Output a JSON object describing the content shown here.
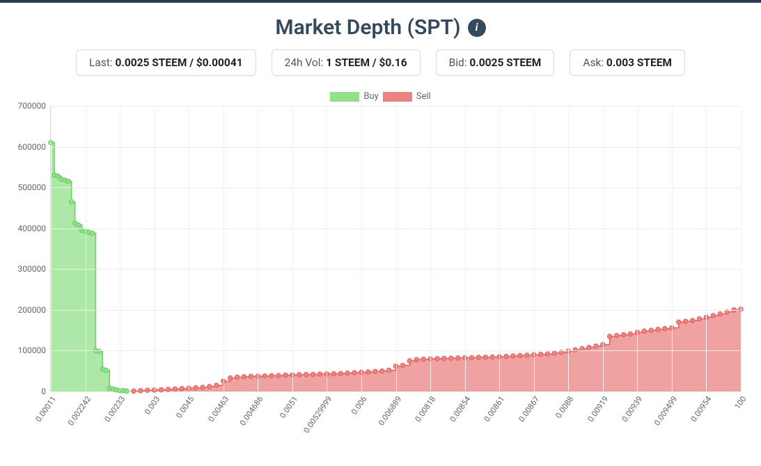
{
  "title": "Market Depth (SPT)",
  "info_icon_glyph": "i",
  "stats": [
    {
      "label": "Last: ",
      "value": "0.0025 STEEM / $0.00041"
    },
    {
      "label": "24h Vol: ",
      "value": "1 STEEM / $0.16"
    },
    {
      "label": "Bid: ",
      "value": "0.0025 STEEM"
    },
    {
      "label": "Ask: ",
      "value": "0.003 STEEM"
    }
  ],
  "legend": {
    "buy_label": "Buy",
    "sell_label": "Sell"
  },
  "chart": {
    "type": "depth-area",
    "ylim": [
      0,
      700000
    ],
    "ytick_step": 100000,
    "yticks": [
      0,
      100000,
      200000,
      300000,
      400000,
      500000,
      600000,
      700000
    ],
    "x_categories": [
      "0.00011",
      "0.002242",
      "0.00233",
      "0.003",
      "0.0045",
      "0.00463",
      "0.004686",
      "0.0051",
      "0.00529999",
      "0.006",
      "0.006889",
      "0.00818",
      "0.00854",
      "0.00861",
      "0.00867",
      "0.0088",
      "0.00919",
      "0.00939",
      "0.009499",
      "0.00954",
      "100"
    ],
    "background_color": "#ffffff",
    "grid_color": "#ececec",
    "axis_color": "#d8d8d8",
    "label_color": "#666666",
    "label_fontsize": 12,
    "buy": {
      "fill": "#92e08a",
      "stroke": "#6ccf62",
      "marker_radius": 3.2,
      "points": [
        [
          0,
          610000
        ],
        [
          0.5,
          530000
        ],
        [
          1,
          528000
        ],
        [
          1.5,
          520000
        ],
        [
          2,
          518000
        ],
        [
          2.5,
          515000
        ],
        [
          3,
          465000
        ],
        [
          3.5,
          412000
        ],
        [
          4,
          408000
        ],
        [
          4.5,
          395000
        ],
        [
          5,
          393000
        ],
        [
          5.5,
          390000
        ],
        [
          6,
          388000
        ],
        [
          6.5,
          100000
        ],
        [
          7,
          98000
        ],
        [
          7.5,
          55000
        ],
        [
          8,
          52000
        ],
        [
          8.5,
          8000
        ],
        [
          9,
          6000
        ],
        [
          9.5,
          4000
        ],
        [
          10,
          2500
        ],
        [
          10.5,
          2000
        ],
        [
          11,
          1000
        ]
      ]
    },
    "sell": {
      "fill": "#eb8382",
      "stroke": "#e06665",
      "marker_radius": 3.2,
      "points": [
        [
          12,
          1000
        ],
        [
          13,
          2000
        ],
        [
          14,
          3000
        ],
        [
          15,
          3500
        ],
        [
          16,
          4000
        ],
        [
          17,
          5000
        ],
        [
          18,
          6000
        ],
        [
          19,
          7000
        ],
        [
          20,
          8000
        ],
        [
          21,
          9000
        ],
        [
          22,
          10000
        ],
        [
          23,
          12000
        ],
        [
          24,
          15000
        ],
        [
          25,
          25000
        ],
        [
          26,
          33000
        ],
        [
          27,
          35000
        ],
        [
          28,
          36000
        ],
        [
          29,
          37000
        ],
        [
          30,
          37500
        ],
        [
          31,
          38000
        ],
        [
          32,
          38500
        ],
        [
          33,
          39000
        ],
        [
          34,
          40000
        ],
        [
          35,
          40500
        ],
        [
          36,
          41000
        ],
        [
          37,
          41500
        ],
        [
          38,
          42000
        ],
        [
          39,
          42500
        ],
        [
          40,
          43000
        ],
        [
          41,
          43500
        ],
        [
          42,
          44000
        ],
        [
          43,
          45000
        ],
        [
          44,
          46000
        ],
        [
          45,
          47000
        ],
        [
          46,
          48000
        ],
        [
          47,
          49000
        ],
        [
          48,
          50000
        ],
        [
          49,
          52000
        ],
        [
          50,
          62000
        ],
        [
          51,
          64000
        ],
        [
          52,
          75000
        ],
        [
          53,
          78000
        ],
        [
          54,
          79000
        ],
        [
          55,
          80000
        ],
        [
          56,
          80500
        ],
        [
          57,
          81000
        ],
        [
          58,
          81500
        ],
        [
          59,
          82000
        ],
        [
          60,
          82500
        ],
        [
          61,
          83000
        ],
        [
          62,
          83500
        ],
        [
          63,
          84000
        ],
        [
          64,
          84500
        ],
        [
          65,
          85000
        ],
        [
          66,
          86000
        ],
        [
          67,
          87000
        ],
        [
          68,
          88000
        ],
        [
          69,
          89000
        ],
        [
          70,
          90000
        ],
        [
          71,
          91000
        ],
        [
          72,
          92000
        ],
        [
          73,
          94000
        ],
        [
          74,
          96000
        ],
        [
          75,
          99000
        ],
        [
          76,
          102000
        ],
        [
          77,
          105000
        ],
        [
          78,
          108000
        ],
        [
          79,
          111000
        ],
        [
          80,
          115000
        ],
        [
          81,
          135000
        ],
        [
          82,
          137000
        ],
        [
          83,
          139000
        ],
        [
          84,
          141000
        ],
        [
          85,
          145000
        ],
        [
          86,
          148000
        ],
        [
          87,
          150000
        ],
        [
          88,
          152000
        ],
        [
          89,
          154000
        ],
        [
          90,
          156000
        ],
        [
          91,
          170000
        ],
        [
          92,
          172000
        ],
        [
          93,
          174000
        ],
        [
          94,
          178000
        ],
        [
          95,
          182000
        ],
        [
          96,
          186000
        ],
        [
          97,
          190000
        ],
        [
          98,
          195000
        ],
        [
          99,
          200000
        ],
        [
          100,
          202000
        ]
      ]
    }
  }
}
